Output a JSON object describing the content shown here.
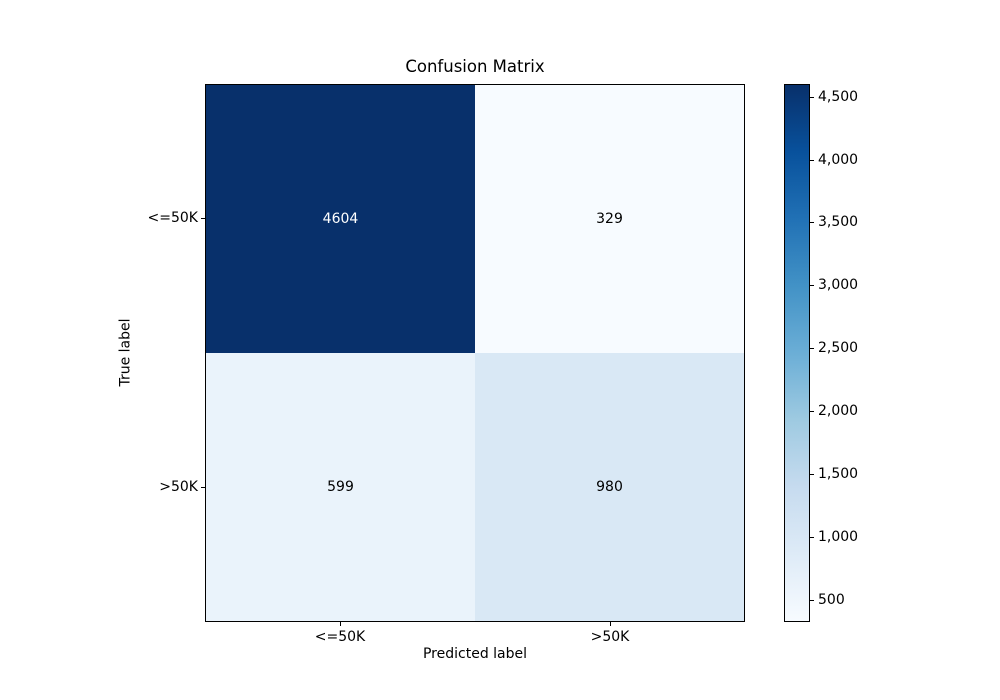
{
  "chart_data": {
    "type": "heatmap",
    "title": "Confusion Matrix",
    "xlabel": "Predicted label",
    "ylabel": "True label",
    "x_categories": [
      "<=50K",
      ">50K"
    ],
    "y_categories": [
      "<=50K",
      ">50K"
    ],
    "matrix": [
      [
        4604,
        329
      ],
      [
        599,
        980
      ]
    ],
    "vmin": 329,
    "vmax": 4604,
    "grid": false,
    "colormap": {
      "name": "Blues",
      "stops": [
        [
          0.0,
          "#f7fbff"
        ],
        [
          0.125,
          "#deebf7"
        ],
        [
          0.25,
          "#c6dbef"
        ],
        [
          0.375,
          "#9ecae1"
        ],
        [
          0.5,
          "#6baed6"
        ],
        [
          0.625,
          "#4292c6"
        ],
        [
          0.75,
          "#2171b5"
        ],
        [
          0.875,
          "#08519c"
        ],
        [
          1.0,
          "#08306b"
        ]
      ]
    },
    "colorbar": {
      "position": "right",
      "ticks": [
        {
          "value": 500,
          "label": "500"
        },
        {
          "value": 1000,
          "label": "1,000"
        },
        {
          "value": 1500,
          "label": "1,500"
        },
        {
          "value": 2000,
          "label": "2,000"
        },
        {
          "value": 2500,
          "label": "2,500"
        },
        {
          "value": 3000,
          "label": "3,000"
        },
        {
          "value": 3500,
          "label": "3,500"
        },
        {
          "value": 4000,
          "label": "4,000"
        },
        {
          "value": 4500,
          "label": "4,500"
        }
      ]
    },
    "cell_text_colors": {
      "on_light": "#000000",
      "on_dark": "#ffffff"
    },
    "frame_color": "#000000",
    "background_color": "#ffffff"
  }
}
